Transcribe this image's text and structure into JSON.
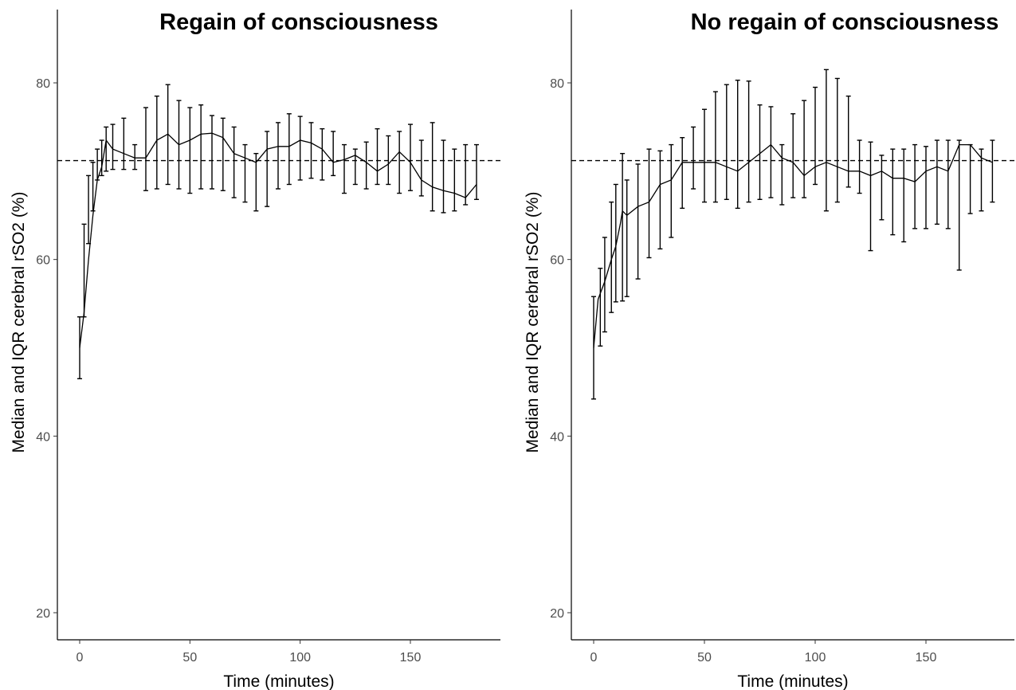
{
  "chart_data": [
    {
      "type": "line",
      "title": "Regain of consciousness",
      "xlabel": "Time (minutes)",
      "ylabel": "Median and IQR cerebral rSO2 (%)",
      "xlim": [
        -10,
        190
      ],
      "ylim": [
        17,
        88
      ],
      "x_ticks": [
        0,
        50,
        100,
        150
      ],
      "y_ticks": [
        20,
        40,
        60,
        80
      ],
      "reference_line": 71.2,
      "series": [
        {
          "median": [
            [
              0,
              50
            ],
            [
              2,
              54
            ],
            [
              4,
              60
            ],
            [
              6,
              65
            ],
            [
              8,
              69
            ],
            [
              10,
              70.5
            ],
            [
              12,
              73.5
            ],
            [
              15,
              72.5
            ],
            [
              20,
              72
            ],
            [
              25,
              71.5
            ],
            [
              30,
              71.5
            ],
            [
              35,
              73.5
            ],
            [
              40,
              74.2
            ],
            [
              45,
              73
            ],
            [
              50,
              73.5
            ],
            [
              55,
              74.2
            ],
            [
              60,
              74.3
            ],
            [
              65,
              73.8
            ],
            [
              70,
              72
            ],
            [
              75,
              71.5
            ],
            [
              80,
              71
            ],
            [
              85,
              72.5
            ],
            [
              90,
              72.8
            ],
            [
              95,
              72.8
            ],
            [
              100,
              73.5
            ],
            [
              105,
              73.2
            ],
            [
              110,
              72.5
            ],
            [
              115,
              71
            ],
            [
              120,
              71.3
            ],
            [
              125,
              71.8
            ],
            [
              130,
              71
            ],
            [
              135,
              70
            ],
            [
              140,
              70.8
            ],
            [
              145,
              72.2
            ],
            [
              150,
              71
            ],
            [
              155,
              69
            ],
            [
              160,
              68.2
            ],
            [
              165,
              67.8
            ],
            [
              170,
              67.5
            ],
            [
              175,
              67
            ],
            [
              180,
              68.5
            ]
          ],
          "iqr": [
            [
              0,
              46.5,
              53.5
            ],
            [
              2,
              53.5,
              64
            ],
            [
              4,
              61.8,
              69.5
            ],
            [
              6,
              65.5,
              71
            ],
            [
              8,
              69,
              72.5
            ],
            [
              10,
              69.5,
              73.5
            ],
            [
              12,
              70,
              75
            ],
            [
              15,
              70.2,
              75.3
            ],
            [
              20,
              70.2,
              76
            ],
            [
              25,
              70.2,
              73
            ],
            [
              30,
              67.8,
              77.2
            ],
            [
              35,
              68,
              78.5
            ],
            [
              40,
              68.5,
              79.8
            ],
            [
              45,
              68,
              78
            ],
            [
              50,
              67.5,
              77.2
            ],
            [
              55,
              68,
              77.5
            ],
            [
              60,
              68,
              76.3
            ],
            [
              65,
              67.8,
              76
            ],
            [
              70,
              67,
              75
            ],
            [
              75,
              66.5,
              73
            ],
            [
              80,
              65.5,
              72
            ],
            [
              85,
              66,
              74.5
            ],
            [
              90,
              68,
              75.5
            ],
            [
              95,
              68.5,
              76.5
            ],
            [
              100,
              69,
              76.2
            ],
            [
              105,
              69.2,
              75.5
            ],
            [
              110,
              69,
              74.8
            ],
            [
              115,
              69.5,
              74.5
            ],
            [
              120,
              67.5,
              73
            ],
            [
              125,
              68.5,
              72.5
            ],
            [
              130,
              68,
              73.3
            ],
            [
              135,
              68.5,
              74.8
            ],
            [
              140,
              68.5,
              74
            ],
            [
              145,
              67.5,
              74.5
            ],
            [
              150,
              67.8,
              75.3
            ],
            [
              155,
              67.2,
              73.5
            ],
            [
              160,
              65.5,
              75.5
            ],
            [
              165,
              65.3,
              73.5
            ],
            [
              170,
              65.5,
              72.5
            ],
            [
              175,
              66.2,
              73
            ],
            [
              180,
              66.8,
              73
            ]
          ]
        }
      ]
    },
    {
      "type": "line",
      "title": "No regain of consciousness",
      "xlabel": "Time (minutes)",
      "ylabel": "Median and IQR cerebral rSO2 (%)",
      "xlim": [
        -10,
        190
      ],
      "ylim": [
        17,
        88
      ],
      "x_ticks": [
        0,
        50,
        100,
        150
      ],
      "y_ticks": [
        20,
        40,
        60,
        80
      ],
      "reference_line": 71.2,
      "series": [
        {
          "median": [
            [
              0,
              50
            ],
            [
              2,
              55.5
            ],
            [
              5,
              57.5
            ],
            [
              8,
              60
            ],
            [
              10,
              61.5
            ],
            [
              12,
              64
            ],
            [
              13,
              65.5
            ],
            [
              15,
              65
            ],
            [
              20,
              66
            ],
            [
              25,
              66.5
            ],
            [
              30,
              68.5
            ],
            [
              35,
              69
            ],
            [
              40,
              71
            ],
            [
              45,
              71
            ],
            [
              50,
              71
            ],
            [
              55,
              71
            ],
            [
              60,
              70.5
            ],
            [
              65,
              70
            ],
            [
              70,
              71
            ],
            [
              75,
              72
            ],
            [
              80,
              73
            ],
            [
              85,
              71.5
            ],
            [
              90,
              71
            ],
            [
              95,
              69.5
            ],
            [
              100,
              70.5
            ],
            [
              105,
              71
            ],
            [
              110,
              70.5
            ],
            [
              115,
              70
            ],
            [
              120,
              70
            ],
            [
              125,
              69.5
            ],
            [
              130,
              70
            ],
            [
              135,
              69.2
            ],
            [
              140,
              69.2
            ],
            [
              145,
              68.8
            ],
            [
              150,
              70
            ],
            [
              155,
              70.5
            ],
            [
              160,
              70
            ],
            [
              165,
              73
            ],
            [
              170,
              73
            ],
            [
              175,
              71.5
            ],
            [
              180,
              71
            ]
          ],
          "iqr": [
            [
              0,
              44.2,
              55.8
            ],
            [
              3,
              50.2,
              59
            ],
            [
              5,
              51.8,
              62.5
            ],
            [
              8,
              54,
              66.5
            ],
            [
              10,
              55.2,
              68.5
            ],
            [
              13,
              55.3,
              72
            ],
            [
              15,
              55.8,
              69
            ],
            [
              20,
              57.8,
              70.8
            ],
            [
              25,
              60.2,
              72.5
            ],
            [
              30,
              61.2,
              72.3
            ],
            [
              35,
              62.5,
              73
            ],
            [
              40,
              65.8,
              73.8
            ],
            [
              45,
              68,
              75
            ],
            [
              50,
              66.5,
              77
            ],
            [
              55,
              66.5,
              79
            ],
            [
              60,
              66.8,
              79.8
            ],
            [
              65,
              65.8,
              80.3
            ],
            [
              70,
              66.5,
              80.2
            ],
            [
              75,
              66.8,
              77.5
            ],
            [
              80,
              67,
              77.3
            ],
            [
              85,
              66.2,
              73
            ],
            [
              90,
              67,
              76.5
            ],
            [
              95,
              67,
              78
            ],
            [
              100,
              68.5,
              79.5
            ],
            [
              105,
              65.5,
              81.5
            ],
            [
              110,
              66.5,
              80.5
            ],
            [
              115,
              68.2,
              78.5
            ],
            [
              120,
              67.5,
              73.5
            ],
            [
              125,
              61,
              73.3
            ],
            [
              130,
              64.5,
              71.8
            ],
            [
              135,
              62.8,
              72.5
            ],
            [
              140,
              62,
              72.5
            ],
            [
              145,
              63.5,
              73
            ],
            [
              150,
              63.5,
              72.8
            ],
            [
              155,
              64,
              73.5
            ],
            [
              160,
              63.5,
              73.5
            ],
            [
              165,
              58.8,
              73.5
            ],
            [
              170,
              65.2,
              73
            ],
            [
              175,
              65.5,
              72.5
            ],
            [
              180,
              66.5,
              73.5
            ]
          ]
        }
      ]
    }
  ]
}
